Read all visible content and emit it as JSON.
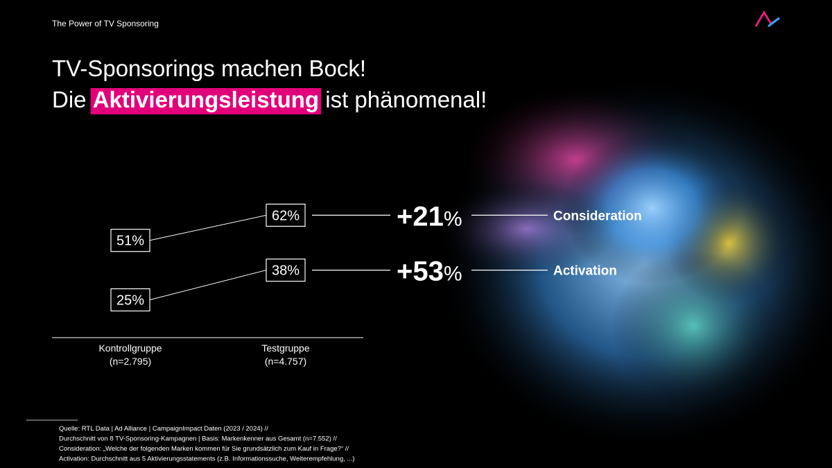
{
  "header": "The Power of TV Sponsoring",
  "title": {
    "line1": "TV-Sponsorings machen Bock!",
    "line2_before": "Die",
    "line2_highlight": "Aktivierungsleistung",
    "line2_after": "ist phänomenal!"
  },
  "chart_data": {
    "type": "slope",
    "categories": [
      "Kontrollgruppe",
      "Testgruppe"
    ],
    "category_notes": [
      "(n=2.795)",
      "(n=4.757)"
    ],
    "series": [
      {
        "name": "Consideration",
        "color": "#ffffff",
        "values": [
          51,
          62
        ],
        "value_labels": [
          "51%",
          "62%"
        ],
        "change": 21,
        "change_label": "+21%"
      },
      {
        "name": "Activation",
        "color": "#ffffff",
        "values": [
          25,
          38
        ],
        "value_labels": [
          "25%",
          "38%"
        ],
        "change": 53,
        "change_label": "+53%"
      }
    ]
  },
  "footnotes": [
    "Quelle: RTL Data | Ad Alliance | CampaignImpact Daten (2023 / 2024) //",
    "Durchschnitt von 8 TV-Sponsoring-Kampagnen | Basis: Markenkenner aus Gesamt (n=7.552) //",
    "Consideration: „Welche der folgenden Marken kommen für Sie grundsätzlich zum Kauf in Frage?“ //",
    "Activation: Durchschnitt aus 5 Aktivierungsstatements (z.B. Informationssuche, Weiterempfehlung, ...)"
  ]
}
